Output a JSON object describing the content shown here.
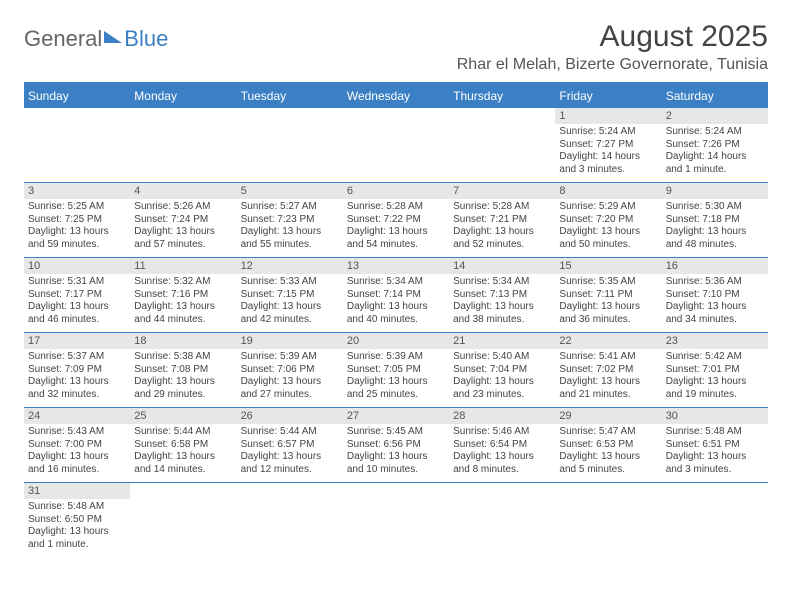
{
  "logo": {
    "general": "General",
    "blue": "Blue"
  },
  "title": "August 2025",
  "location": "Rhar el Melah, Bizerte Governorate, Tunisia",
  "dayHeaders": [
    "Sunday",
    "Monday",
    "Tuesday",
    "Wednesday",
    "Thursday",
    "Friday",
    "Saturday"
  ],
  "colors": {
    "accent": "#3b7fc4",
    "daynum_bg": "#e7e7e7",
    "text": "#444444"
  },
  "weeks": [
    [
      null,
      null,
      null,
      null,
      null,
      {
        "n": "1",
        "sr": "Sunrise: 5:24 AM",
        "ss": "Sunset: 7:27 PM",
        "dl": "Daylight: 14 hours and 3 minutes."
      },
      {
        "n": "2",
        "sr": "Sunrise: 5:24 AM",
        "ss": "Sunset: 7:26 PM",
        "dl": "Daylight: 14 hours and 1 minute."
      }
    ],
    [
      {
        "n": "3",
        "sr": "Sunrise: 5:25 AM",
        "ss": "Sunset: 7:25 PM",
        "dl": "Daylight: 13 hours and 59 minutes."
      },
      {
        "n": "4",
        "sr": "Sunrise: 5:26 AM",
        "ss": "Sunset: 7:24 PM",
        "dl": "Daylight: 13 hours and 57 minutes."
      },
      {
        "n": "5",
        "sr": "Sunrise: 5:27 AM",
        "ss": "Sunset: 7:23 PM",
        "dl": "Daylight: 13 hours and 55 minutes."
      },
      {
        "n": "6",
        "sr": "Sunrise: 5:28 AM",
        "ss": "Sunset: 7:22 PM",
        "dl": "Daylight: 13 hours and 54 minutes."
      },
      {
        "n": "7",
        "sr": "Sunrise: 5:28 AM",
        "ss": "Sunset: 7:21 PM",
        "dl": "Daylight: 13 hours and 52 minutes."
      },
      {
        "n": "8",
        "sr": "Sunrise: 5:29 AM",
        "ss": "Sunset: 7:20 PM",
        "dl": "Daylight: 13 hours and 50 minutes."
      },
      {
        "n": "9",
        "sr": "Sunrise: 5:30 AM",
        "ss": "Sunset: 7:18 PM",
        "dl": "Daylight: 13 hours and 48 minutes."
      }
    ],
    [
      {
        "n": "10",
        "sr": "Sunrise: 5:31 AM",
        "ss": "Sunset: 7:17 PM",
        "dl": "Daylight: 13 hours and 46 minutes."
      },
      {
        "n": "11",
        "sr": "Sunrise: 5:32 AM",
        "ss": "Sunset: 7:16 PM",
        "dl": "Daylight: 13 hours and 44 minutes."
      },
      {
        "n": "12",
        "sr": "Sunrise: 5:33 AM",
        "ss": "Sunset: 7:15 PM",
        "dl": "Daylight: 13 hours and 42 minutes."
      },
      {
        "n": "13",
        "sr": "Sunrise: 5:34 AM",
        "ss": "Sunset: 7:14 PM",
        "dl": "Daylight: 13 hours and 40 minutes."
      },
      {
        "n": "14",
        "sr": "Sunrise: 5:34 AM",
        "ss": "Sunset: 7:13 PM",
        "dl": "Daylight: 13 hours and 38 minutes."
      },
      {
        "n": "15",
        "sr": "Sunrise: 5:35 AM",
        "ss": "Sunset: 7:11 PM",
        "dl": "Daylight: 13 hours and 36 minutes."
      },
      {
        "n": "16",
        "sr": "Sunrise: 5:36 AM",
        "ss": "Sunset: 7:10 PM",
        "dl": "Daylight: 13 hours and 34 minutes."
      }
    ],
    [
      {
        "n": "17",
        "sr": "Sunrise: 5:37 AM",
        "ss": "Sunset: 7:09 PM",
        "dl": "Daylight: 13 hours and 32 minutes."
      },
      {
        "n": "18",
        "sr": "Sunrise: 5:38 AM",
        "ss": "Sunset: 7:08 PM",
        "dl": "Daylight: 13 hours and 29 minutes."
      },
      {
        "n": "19",
        "sr": "Sunrise: 5:39 AM",
        "ss": "Sunset: 7:06 PM",
        "dl": "Daylight: 13 hours and 27 minutes."
      },
      {
        "n": "20",
        "sr": "Sunrise: 5:39 AM",
        "ss": "Sunset: 7:05 PM",
        "dl": "Daylight: 13 hours and 25 minutes."
      },
      {
        "n": "21",
        "sr": "Sunrise: 5:40 AM",
        "ss": "Sunset: 7:04 PM",
        "dl": "Daylight: 13 hours and 23 minutes."
      },
      {
        "n": "22",
        "sr": "Sunrise: 5:41 AM",
        "ss": "Sunset: 7:02 PM",
        "dl": "Daylight: 13 hours and 21 minutes."
      },
      {
        "n": "23",
        "sr": "Sunrise: 5:42 AM",
        "ss": "Sunset: 7:01 PM",
        "dl": "Daylight: 13 hours and 19 minutes."
      }
    ],
    [
      {
        "n": "24",
        "sr": "Sunrise: 5:43 AM",
        "ss": "Sunset: 7:00 PM",
        "dl": "Daylight: 13 hours and 16 minutes."
      },
      {
        "n": "25",
        "sr": "Sunrise: 5:44 AM",
        "ss": "Sunset: 6:58 PM",
        "dl": "Daylight: 13 hours and 14 minutes."
      },
      {
        "n": "26",
        "sr": "Sunrise: 5:44 AM",
        "ss": "Sunset: 6:57 PM",
        "dl": "Daylight: 13 hours and 12 minutes."
      },
      {
        "n": "27",
        "sr": "Sunrise: 5:45 AM",
        "ss": "Sunset: 6:56 PM",
        "dl": "Daylight: 13 hours and 10 minutes."
      },
      {
        "n": "28",
        "sr": "Sunrise: 5:46 AM",
        "ss": "Sunset: 6:54 PM",
        "dl": "Daylight: 13 hours and 8 minutes."
      },
      {
        "n": "29",
        "sr": "Sunrise: 5:47 AM",
        "ss": "Sunset: 6:53 PM",
        "dl": "Daylight: 13 hours and 5 minutes."
      },
      {
        "n": "30",
        "sr": "Sunrise: 5:48 AM",
        "ss": "Sunset: 6:51 PM",
        "dl": "Daylight: 13 hours and 3 minutes."
      }
    ],
    [
      {
        "n": "31",
        "sr": "Sunrise: 5:48 AM",
        "ss": "Sunset: 6:50 PM",
        "dl": "Daylight: 13 hours and 1 minute."
      },
      null,
      null,
      null,
      null,
      null,
      null
    ]
  ]
}
